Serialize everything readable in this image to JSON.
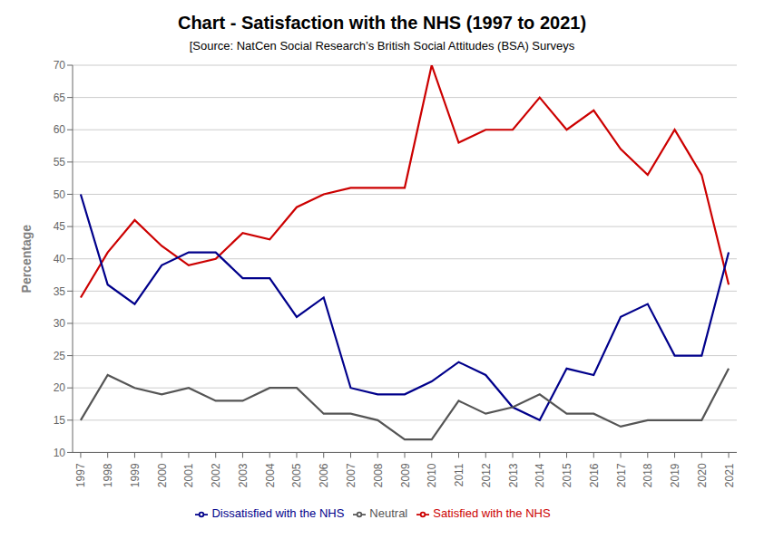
{
  "chart_data": {
    "type": "line",
    "title": "Chart - Satisfaction with the NHS (1997 to 2021)",
    "subtitle": "[Source: NatCen Social Research’s British Social Attitudes (BSA) Surveys",
    "ylabel": "Percentage",
    "x": [
      1997,
      1998,
      1999,
      2000,
      2001,
      2002,
      2003,
      2004,
      2005,
      2006,
      2007,
      2008,
      2009,
      2010,
      2011,
      2012,
      2013,
      2014,
      2015,
      2016,
      2017,
      2018,
      2019,
      2020,
      2021
    ],
    "series": [
      {
        "name": "Satisfied with the NHS",
        "color": "#cc0000",
        "values": [
          34,
          41,
          46,
          42,
          39,
          40,
          44,
          43,
          48,
          50,
          51,
          51,
          51,
          70,
          58,
          60,
          60,
          65,
          60,
          63,
          57,
          53,
          60,
          53,
          36
        ]
      },
      {
        "name": "Dissatisfied with the NHS",
        "color": "#00008b",
        "values": [
          50,
          36,
          33,
          39,
          41,
          41,
          37,
          37,
          31,
          34,
          20,
          19,
          19,
          21,
          24,
          22,
          17,
          15,
          23,
          22,
          31,
          33,
          25,
          25,
          41
        ]
      },
      {
        "name": "Neutral",
        "color": "#555555",
        "values": [
          15,
          22,
          20,
          19,
          20,
          18,
          18,
          20,
          20,
          16,
          16,
          15,
          12,
          12,
          18,
          16,
          17,
          19,
          16,
          16,
          14,
          15,
          15,
          15,
          23
        ]
      }
    ],
    "xlim": [
      1996.7,
      2021.3
    ],
    "xticks": [
      1997,
      1998,
      1999,
      2000,
      2001,
      2002,
      2003,
      2004,
      2005,
      2006,
      2007,
      2008,
      2009,
      2010,
      2011,
      2012,
      2013,
      2014,
      2015,
      2016,
      2017,
      2018,
      2019,
      2020,
      2021
    ],
    "ylim": [
      10,
      70
    ],
    "yticks": [
      10,
      15,
      20,
      25,
      30,
      35,
      40,
      45,
      50,
      55,
      60,
      65,
      70
    ],
    "grid": true,
    "legend": "bottom"
  }
}
